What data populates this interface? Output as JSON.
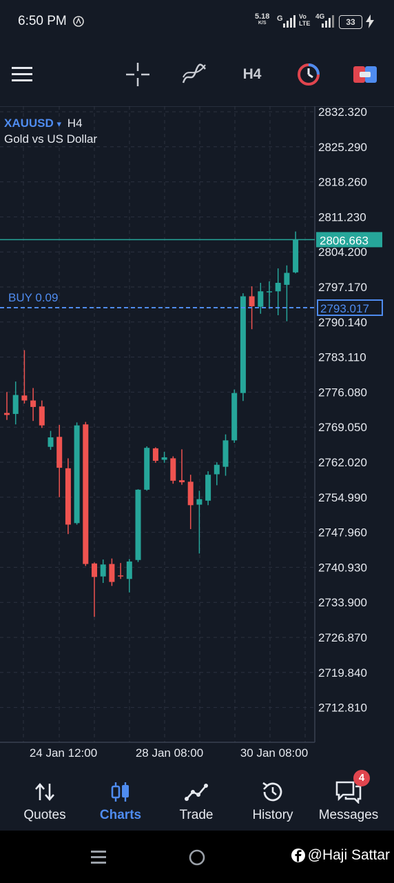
{
  "status_bar": {
    "time": "6:50 PM",
    "net_speed": "5.18",
    "net_unit": "K/S",
    "signal_label": "G",
    "volte": "Vo LTE",
    "network": "4G",
    "battery": "33"
  },
  "toolbar": {
    "menu_icon": "hamburger-icon",
    "crosshair_icon": "crosshair-icon",
    "indicators_icon": "indicators-icon",
    "timeframe": "H4",
    "history_chart_icon": "chart-timer-icon",
    "trade_toggle_icon": "trade-toggle-icon"
  },
  "chart_header": {
    "symbol": "XAUUSD",
    "dropdown_glyph": "▾",
    "timeframe": "H4",
    "description": "Gold vs US Dollar"
  },
  "position_label": "BUY 0.09",
  "colors": {
    "bullish": "#26a69a",
    "bearish": "#ef5350",
    "accent": "#4f8cf0",
    "background": "#141a25",
    "grid": "#2b3140"
  },
  "chart_data": {
    "type": "candlestick",
    "symbol": "XAUUSD",
    "timeframe": "H4",
    "ylim": [
      2708.5,
      2835
    ],
    "y_ticks": [
      "2832.320",
      "2825.290",
      "2818.260",
      "2811.230",
      "2804.200",
      "2797.170",
      "2790.140",
      "2783.110",
      "2776.080",
      "2769.050",
      "2762.020",
      "2754.990",
      "2747.960",
      "2740.930",
      "2733.900",
      "2726.870",
      "2719.840",
      "2712.810"
    ],
    "x_ticks": [
      "24 Jan 12:00",
      "28 Jan 08:00",
      "30 Jan 08:00"
    ],
    "current_price": 2806.663,
    "current_price_label": "2806.663",
    "buy_price": 2793.017,
    "buy_price_label": "2793.017",
    "candles": [
      {
        "o": 2771.9,
        "h": 2776.1,
        "l": 2770.5,
        "c": 2771.5
      },
      {
        "o": 2771.7,
        "h": 2778.2,
        "l": 2769.6,
        "c": 2775.5
      },
      {
        "o": 2775.4,
        "h": 2784.5,
        "l": 2773.8,
        "c": 2774.4
      },
      {
        "o": 2774.4,
        "h": 2776.9,
        "l": 2770.3,
        "c": 2773.1
      },
      {
        "o": 2773.2,
        "h": 2774.4,
        "l": 2768.9,
        "c": 2769.4
      },
      {
        "o": 2765.1,
        "h": 2768.3,
        "l": 2764.5,
        "c": 2767.0
      },
      {
        "o": 2767.1,
        "h": 2769.5,
        "l": 2755.0,
        "c": 2760.9
      },
      {
        "o": 2760.8,
        "h": 2762.8,
        "l": 2747.6,
        "c": 2749.5
      },
      {
        "o": 2749.8,
        "h": 2770.0,
        "l": 2749.5,
        "c": 2769.4
      },
      {
        "o": 2769.6,
        "h": 2770.1,
        "l": 2741.2,
        "c": 2741.6
      },
      {
        "o": 2741.7,
        "h": 2741.9,
        "l": 2731.0,
        "c": 2739.0
      },
      {
        "o": 2739.1,
        "h": 2742.5,
        "l": 2737.8,
        "c": 2741.5
      },
      {
        "o": 2741.6,
        "h": 2742.7,
        "l": 2737.2,
        "c": 2738.0
      },
      {
        "o": 2739.3,
        "h": 2741.8,
        "l": 2738.6,
        "c": 2739.2
      },
      {
        "o": 2738.6,
        "h": 2742.6,
        "l": 2735.9,
        "c": 2742.1
      },
      {
        "o": 2742.4,
        "h": 2756.6,
        "l": 2742.0,
        "c": 2756.5
      },
      {
        "o": 2756.5,
        "h": 2765.2,
        "l": 2756.3,
        "c": 2764.9
      },
      {
        "o": 2764.8,
        "h": 2765.0,
        "l": 2761.9,
        "c": 2762.3
      },
      {
        "o": 2762.5,
        "h": 2764.1,
        "l": 2761.9,
        "c": 2763.0
      },
      {
        "o": 2762.8,
        "h": 2763.2,
        "l": 2757.7,
        "c": 2758.3
      },
      {
        "o": 2758.4,
        "h": 2764.6,
        "l": 2757.5,
        "c": 2758.0
      },
      {
        "o": 2758.1,
        "h": 2759.5,
        "l": 2748.6,
        "c": 2753.4
      },
      {
        "o": 2753.5,
        "h": 2756.3,
        "l": 2743.7,
        "c": 2754.6
      },
      {
        "o": 2754.3,
        "h": 2760.2,
        "l": 2753.4,
        "c": 2759.5
      },
      {
        "o": 2759.6,
        "h": 2762.0,
        "l": 2757.4,
        "c": 2761.5
      },
      {
        "o": 2761.1,
        "h": 2767.6,
        "l": 2759.3,
        "c": 2766.4
      },
      {
        "o": 2766.4,
        "h": 2776.6,
        "l": 2765.9,
        "c": 2775.9
      },
      {
        "o": 2775.9,
        "h": 2795.9,
        "l": 2774.3,
        "c": 2795.3
      },
      {
        "o": 2795.3,
        "h": 2797.3,
        "l": 2788.7,
        "c": 2793.3
      },
      {
        "o": 2793.2,
        "h": 2798.0,
        "l": 2791.8,
        "c": 2796.3
      },
      {
        "o": 2796.2,
        "h": 2798.3,
        "l": 2792.8,
        "c": 2796.3
      },
      {
        "o": 2796.3,
        "h": 2800.9,
        "l": 2791.5,
        "c": 2798.0
      },
      {
        "o": 2797.6,
        "h": 2801.5,
        "l": 2790.3,
        "c": 2800.0
      },
      {
        "o": 2800.1,
        "h": 2808.3,
        "l": 2799.9,
        "c": 2806.7
      }
    ]
  },
  "bottom_nav": [
    {
      "label": "Quotes",
      "icon": "quotes-arrows-icon"
    },
    {
      "label": "Charts",
      "icon": "candles-icon"
    },
    {
      "label": "Trade",
      "icon": "trade-line-icon"
    },
    {
      "label": "History",
      "icon": "history-clock-icon"
    },
    {
      "label": "Messages",
      "icon": "messages-icon",
      "badge": "4"
    }
  ],
  "watermark": "@Haji Sattar"
}
